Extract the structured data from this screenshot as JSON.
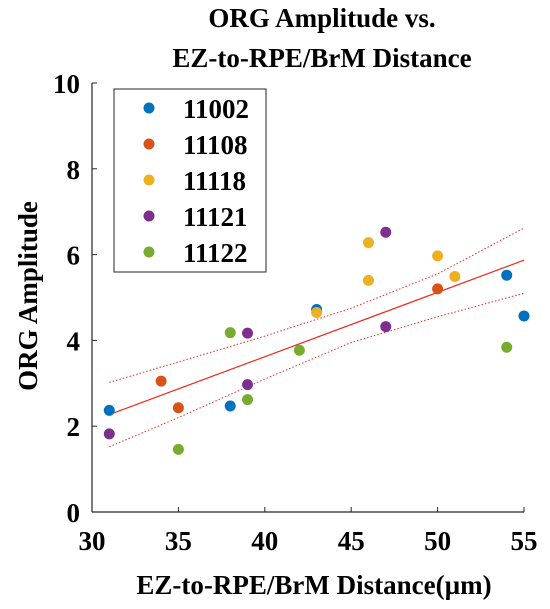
{
  "chart_data": {
    "type": "scatter",
    "title_lines": [
      "ORG Amplitude vs.",
      "EZ-to-RPE/BrM Distance"
    ],
    "xlabel": "EZ-to-RPE/BrM Distance(µm)",
    "ylabel": "ORG Amplitude",
    "xlim": [
      30,
      55
    ],
    "ylim": [
      0,
      10
    ],
    "xticks": [
      "30",
      "35",
      "40",
      "45",
      "50",
      "55"
    ],
    "yticks": [
      "0",
      "2",
      "4",
      "6",
      "8",
      "10"
    ],
    "legend_position": "top-left",
    "series": [
      {
        "name": "11002",
        "color": "#0072BD",
        "points": [
          [
            31,
            2.37
          ],
          [
            38,
            2.47
          ],
          [
            43,
            4.72
          ],
          [
            54,
            5.52
          ],
          [
            55,
            4.57
          ]
        ]
      },
      {
        "name": "11108",
        "color": "#D95319",
        "points": [
          [
            34,
            3.05
          ],
          [
            35,
            2.43
          ],
          [
            50,
            5.2
          ]
        ]
      },
      {
        "name": "11118",
        "color": "#EDB120",
        "points": [
          [
            43,
            4.65
          ],
          [
            46,
            6.28
          ],
          [
            46,
            5.4
          ],
          [
            50,
            5.97
          ],
          [
            51,
            5.49
          ]
        ]
      },
      {
        "name": "11121",
        "color": "#7E2F8E",
        "points": [
          [
            31,
            1.82
          ],
          [
            39,
            4.17
          ],
          [
            39,
            2.97
          ],
          [
            47,
            6.52
          ],
          [
            47,
            4.32
          ]
        ]
      },
      {
        "name": "11122",
        "color": "#77AC30",
        "points": [
          [
            35,
            1.46
          ],
          [
            38,
            4.18
          ],
          [
            39,
            2.62
          ],
          [
            42,
            3.77
          ],
          [
            54,
            3.84
          ]
        ]
      }
    ],
    "fit_line": {
      "color": "#E8291C",
      "points": [
        [
          31,
          2.27
        ],
        [
          55,
          5.87
        ]
      ]
    },
    "confidence_band": {
      "color": "#E8291C",
      "upper": [
        [
          31,
          3.02
        ],
        [
          35,
          3.5
        ],
        [
          40,
          4.1
        ],
        [
          45,
          4.75
        ],
        [
          50,
          5.55
        ],
        [
          55,
          6.62
        ]
      ],
      "lower": [
        [
          31,
          1.52
        ],
        [
          35,
          2.2
        ],
        [
          40,
          3.1
        ],
        [
          45,
          3.95
        ],
        [
          50,
          4.55
        ],
        [
          55,
          5.1
        ]
      ]
    }
  }
}
